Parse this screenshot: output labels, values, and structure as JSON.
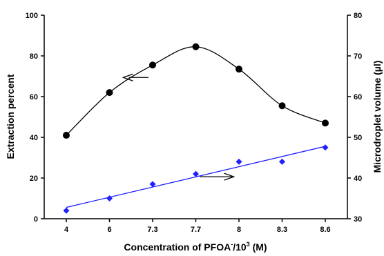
{
  "chart_data": {
    "type": "line",
    "categories": [
      "4",
      "6",
      "7.3",
      "7.7",
      "8",
      "8.3",
      "8.6"
    ],
    "xlabel": {
      "prefix": "Concentration of PFOA",
      "superscript1": "-",
      "middle": "/10",
      "superscript2": "3",
      "suffix": " (M)"
    },
    "ylabel": "Extraction percent",
    "y2label": "Microdroplet volume (µl)",
    "ylim": [
      0,
      100
    ],
    "yticks": [
      0,
      20,
      40,
      60,
      80,
      100
    ],
    "y2lim": [
      30,
      80
    ],
    "y2ticks": [
      30,
      40,
      50,
      60,
      70,
      80
    ],
    "series": [
      {
        "axis": "left",
        "values": [
          41,
          62,
          75.5,
          84.5,
          73.5,
          55.5,
          47
        ],
        "color": "#000000",
        "marker": "circle",
        "line": "smooth curve"
      },
      {
        "axis": "right",
        "values": [
          32,
          35,
          38.5,
          41,
          44,
          44,
          47.5
        ],
        "color": "#1f1fff",
        "marker": "diamond",
        "line": "linear fit"
      }
    ],
    "annotations": [
      {
        "type": "arrow",
        "direction": "left",
        "points_to_axis": "left"
      },
      {
        "type": "arrow",
        "direction": "right",
        "points_to_axis": "right"
      }
    ],
    "grid": false,
    "legend": "none"
  }
}
